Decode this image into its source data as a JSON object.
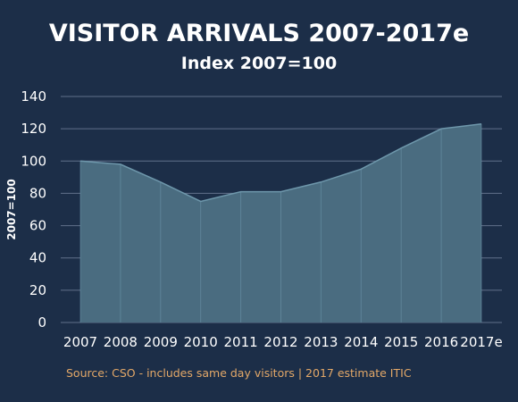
{
  "header": {
    "title": "VISITOR ARRIVALS 2007-2017e",
    "subtitle": "Index 2007=100"
  },
  "footer": {
    "source": "Source: CSO - includes same day visitors  |  2017 estimate ITIC"
  },
  "colors": {
    "background": "#1c2e48",
    "area_fill": "#4a6c80",
    "area_line": "#6e97ab",
    "grid": "#60708a",
    "source_text": "#e3a868"
  },
  "chart_data": {
    "type": "area",
    "title": "VISITOR ARRIVALS 2007-2017e",
    "subtitle": "Index 2007=100",
    "xlabel": "",
    "ylabel": "2007=100",
    "categories": [
      "2007",
      "2008",
      "2009",
      "2010",
      "2011",
      "2012",
      "2013",
      "2014",
      "2015",
      "2016",
      "2017e"
    ],
    "values": [
      100,
      98,
      87,
      75,
      81,
      81,
      87,
      95,
      108,
      120,
      123
    ],
    "ylim": [
      0,
      140
    ],
    "yticks": [
      0,
      20,
      40,
      60,
      80,
      100,
      120,
      140
    ],
    "grid": true,
    "legend": "none"
  }
}
